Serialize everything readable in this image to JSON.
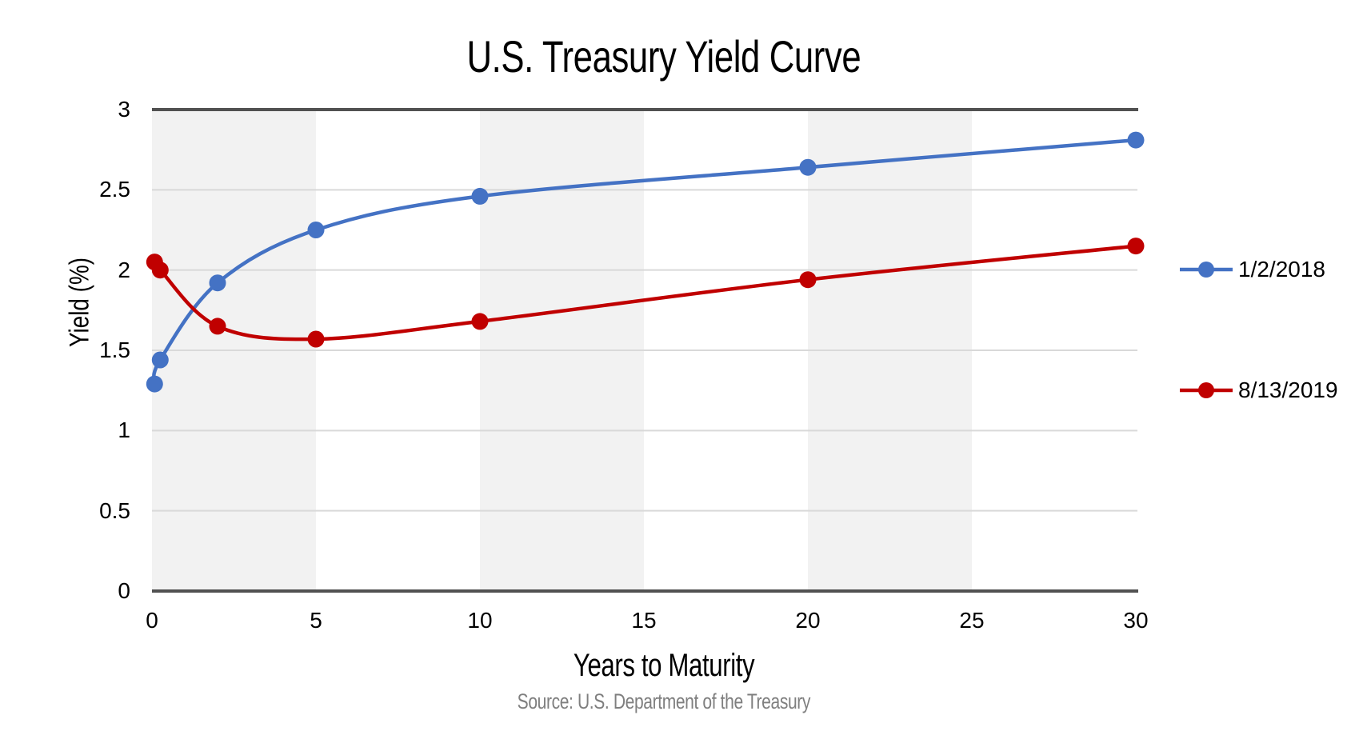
{
  "title": "U.S. Treasury Yield Curve",
  "axes": {
    "x_title": "Years to Maturity",
    "y_title": "Yield (%)"
  },
  "source_note": "Source: U.S. Department of the Treasury",
  "legend": {
    "items": [
      {
        "label": "1/2/2018",
        "color": "#4472C4"
      },
      {
        "label": "8/13/2019",
        "color": "#C00000"
      }
    ]
  },
  "colors": {
    "series_blue": "#4472C4",
    "series_red": "#C00000",
    "band": "#F2F2F2",
    "gridline": "#D9D9D9",
    "axis_line": "#515151",
    "source_text": "#7F7F7F",
    "text": "#000000"
  },
  "chart_data": {
    "type": "line",
    "title": "U.S. Treasury Yield Curve",
    "xlabel": "Years to Maturity",
    "ylabel": "Yield (%)",
    "xlim": [
      0,
      30
    ],
    "ylim": [
      0,
      3
    ],
    "x_ticks": [
      0,
      5,
      10,
      15,
      20,
      25,
      30
    ],
    "y_ticks": [
      0,
      0.5,
      1,
      1.5,
      2,
      2.5,
      3
    ],
    "grid": "horizontal-light",
    "legend_position": "right",
    "shaded_x_bands": [
      [
        0,
        5
      ],
      [
        10,
        15
      ],
      [
        20,
        25
      ]
    ],
    "series": [
      {
        "name": "1/2/2018",
        "color": "#4472C4",
        "marker": "circle",
        "smooth": true,
        "x": [
          0.08,
          0.25,
          2,
          5,
          10,
          20,
          30
        ],
        "y": [
          1.29,
          1.44,
          1.92,
          2.25,
          2.46,
          2.64,
          2.81
        ]
      },
      {
        "name": "8/13/2019",
        "color": "#C00000",
        "marker": "circle",
        "smooth": true,
        "x": [
          0.08,
          0.25,
          2,
          5,
          10,
          20,
          30
        ],
        "y": [
          2.05,
          2.0,
          1.65,
          1.57,
          1.68,
          1.94,
          2.15
        ]
      }
    ]
  }
}
